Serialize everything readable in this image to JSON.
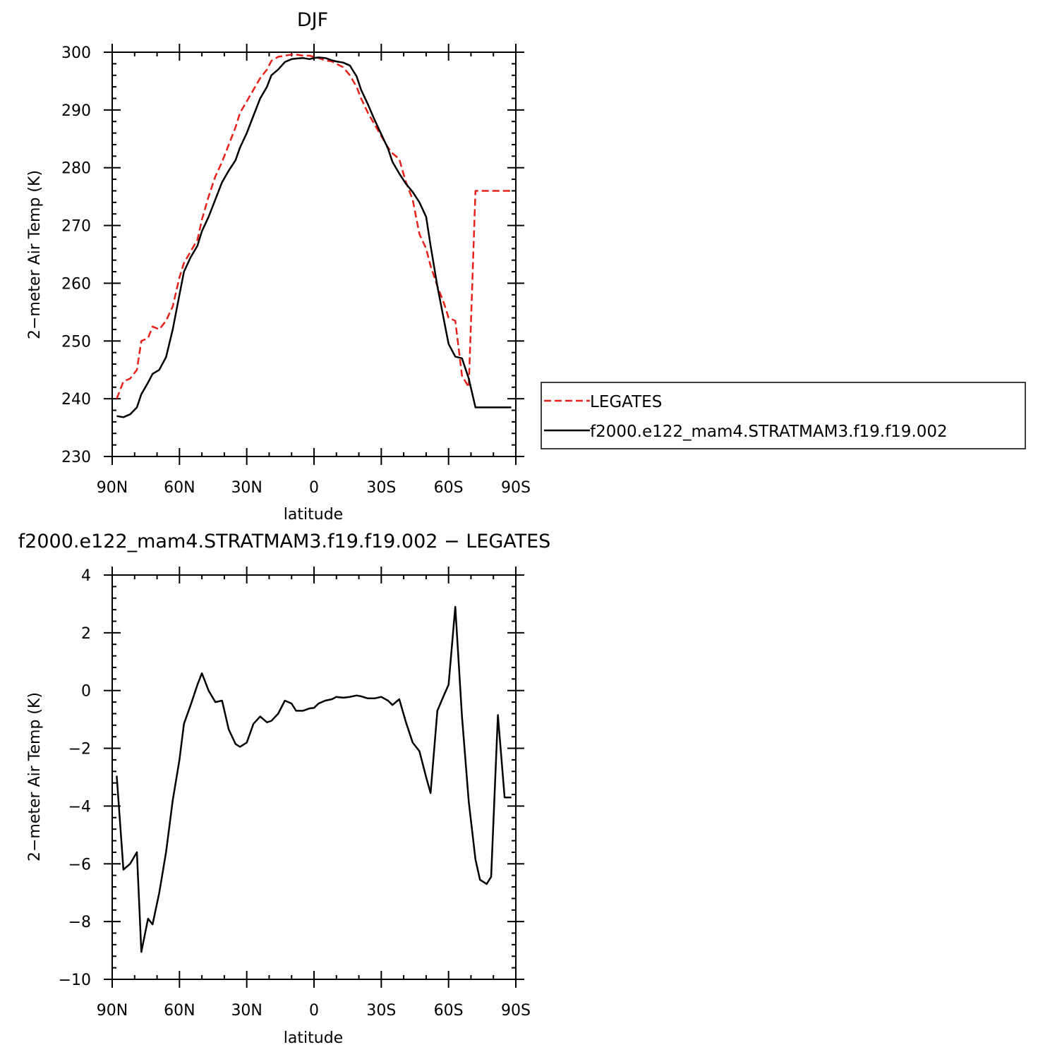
{
  "chart_data": [
    {
      "type": "line",
      "title": "DJF",
      "xlabel": "latitude",
      "ylabel": "2−meter Air Temp (K)",
      "xlim": [
        90,
        -90
      ],
      "ylim": [
        230,
        300
      ],
      "xticks": [
        {
          "value": 90,
          "label": "90N"
        },
        {
          "value": 60,
          "label": "60N"
        },
        {
          "value": 30,
          "label": "30N"
        },
        {
          "value": 0,
          "label": "0"
        },
        {
          "value": -30,
          "label": "30S"
        },
        {
          "value": -60,
          "label": "60S"
        },
        {
          "value": -90,
          "label": "90S"
        }
      ],
      "yticks": [
        230,
        240,
        250,
        260,
        270,
        280,
        290,
        300
      ],
      "legend_position": "right",
      "series": [
        {
          "name": "LEGATES",
          "color": "#e8201a",
          "dash": "dashed",
          "lat": [
            88,
            85,
            82,
            79,
            77,
            74,
            72,
            69,
            66,
            63,
            60,
            58,
            55,
            52,
            50,
            47,
            44,
            41,
            38,
            35,
            33,
            30,
            27,
            24,
            21,
            19,
            16,
            13,
            10,
            8,
            5,
            2,
            0,
            -2,
            -5,
            -8,
            -10,
            -13,
            -16,
            -19,
            -21,
            -24,
            -27,
            -30,
            -33,
            -35,
            -38,
            -41,
            -44,
            -47,
            -50,
            -52,
            -55,
            -58,
            -60,
            -63,
            -66,
            -69,
            -72,
            -74,
            -77,
            -79,
            -82,
            -85,
            -88
          ],
          "values": [
            240.0,
            243.0,
            243.5,
            245.0,
            250.0,
            250.5,
            252.5,
            252.0,
            253.5,
            256.0,
            261.0,
            263.5,
            265.5,
            267.5,
            271.0,
            275.0,
            278.5,
            281.0,
            284.0,
            287.0,
            289.5,
            291.5,
            293.5,
            295.5,
            297.0,
            298.5,
            299.2,
            299.4,
            299.6,
            299.6,
            299.4,
            299.4,
            299.2,
            299.0,
            298.6,
            298.4,
            298.0,
            297.4,
            296.0,
            294.0,
            292.0,
            289.5,
            287.5,
            285.5,
            283.5,
            282.5,
            281.5,
            277.5,
            274.5,
            268.5,
            266.0,
            263.0,
            259.5,
            256.5,
            254.0,
            253.5,
            244.0,
            242.0,
            276.0,
            276.0,
            276.0,
            276.0,
            276.0,
            276.0,
            276.0
          ]
        },
        {
          "name": "f2000.e122_mam4.STRATMAM3.f19.f19.002",
          "color": "#000000",
          "dash": "solid",
          "lat": [
            88,
            85,
            82,
            79,
            77,
            74,
            72,
            69,
            66,
            63,
            60,
            58,
            55,
            52,
            50,
            47,
            44,
            41,
            38,
            35,
            33,
            30,
            27,
            24,
            21,
            19,
            16,
            13,
            10,
            8,
            5,
            2,
            0,
            -2,
            -5,
            -8,
            -10,
            -13,
            -16,
            -19,
            -21,
            -24,
            -27,
            -30,
            -33,
            -35,
            -38,
            -41,
            -44,
            -47,
            -50,
            -52,
            -55,
            -58,
            -60,
            -63,
            -66,
            -69,
            -72,
            -74,
            -77,
            -79,
            -82,
            -85,
            -88
          ],
          "values": [
            237.0,
            236.8,
            237.3,
            238.5,
            240.8,
            242.8,
            244.3,
            245.0,
            247.2,
            252.0,
            258.0,
            262.0,
            264.5,
            266.5,
            269.0,
            271.5,
            274.5,
            277.5,
            279.5,
            281.3,
            283.5,
            286.0,
            289.0,
            292.0,
            294.0,
            296.0,
            297.0,
            298.3,
            298.8,
            298.9,
            299.0,
            298.8,
            299.0,
            299.1,
            299.0,
            298.6,
            298.4,
            298.2,
            297.7,
            295.8,
            293.5,
            291.0,
            288.3,
            285.8,
            283.3,
            281.0,
            279.0,
            277.2,
            275.8,
            274.0,
            271.5,
            266.5,
            259.5,
            253.5,
            249.5,
            247.3,
            247.0,
            243.5,
            238.5,
            238.5,
            238.5,
            238.5,
            238.5,
            238.5,
            238.5
          ]
        }
      ]
    },
    {
      "type": "line",
      "title": "f2000.e122_mam4.STRATMAM3.f19.f19.002 − LEGATES",
      "xlabel": "latitude",
      "ylabel": "2−meter Air Temp (K)",
      "xlim": [
        90,
        -90
      ],
      "ylim": [
        -10,
        4
      ],
      "xticks": [
        {
          "value": 90,
          "label": "90N"
        },
        {
          "value": 60,
          "label": "60N"
        },
        {
          "value": 30,
          "label": "30N"
        },
        {
          "value": 0,
          "label": "0"
        },
        {
          "value": -30,
          "label": "30S"
        },
        {
          "value": -60,
          "label": "60S"
        },
        {
          "value": -90,
          "label": "90S"
        }
      ],
      "yticks": [
        -10,
        -8,
        -6,
        -4,
        -2,
        0,
        2,
        4
      ],
      "yticklabels": [
        "−10",
        "−8",
        "−6",
        "−4",
        "−2",
        "0",
        "2",
        "4"
      ],
      "series": [
        {
          "color": "#000000",
          "dash": "solid",
          "lat": [
            88,
            85,
            82,
            79,
            77,
            74,
            72,
            69,
            66,
            63,
            60,
            58,
            55,
            52,
            50,
            47,
            44,
            41,
            38,
            35,
            33,
            30,
            27,
            24,
            21,
            19,
            16,
            13,
            10,
            8,
            5,
            2,
            0,
            -2,
            -5,
            -8,
            -10,
            -13,
            -16,
            -19,
            -21,
            -24,
            -27,
            -30,
            -33,
            -35,
            -38,
            -41,
            -44,
            -47,
            -50,
            -52,
            -55,
            -58,
            -60,
            -63,
            -66,
            -69,
            -72,
            -74,
            -77,
            -79,
            -82,
            -85,
            -88
          ],
          "values": [
            -2.95,
            -6.2,
            -6.0,
            -5.6,
            -9.05,
            -7.9,
            -8.1,
            -7.0,
            -5.6,
            -3.8,
            -2.4,
            -1.15,
            -0.5,
            0.2,
            0.6,
            0.0,
            -0.4,
            -0.35,
            -1.35,
            -1.85,
            -1.95,
            -1.8,
            -1.15,
            -0.9,
            -1.1,
            -1.05,
            -0.8,
            -0.35,
            -0.45,
            -0.7,
            -0.7,
            -0.62,
            -0.6,
            -0.45,
            -0.35,
            -0.3,
            -0.22,
            -0.25,
            -0.22,
            -0.17,
            -0.2,
            -0.27,
            -0.27,
            -0.22,
            -0.35,
            -0.5,
            -0.3,
            -1.1,
            -1.8,
            -2.1,
            -3.0,
            -3.55,
            -0.7,
            -0.15,
            0.2,
            2.9,
            -0.9,
            -3.85,
            -5.85,
            -6.55,
            -6.7,
            -6.45,
            -0.85,
            -3.7,
            -3.7
          ]
        }
      ]
    }
  ]
}
